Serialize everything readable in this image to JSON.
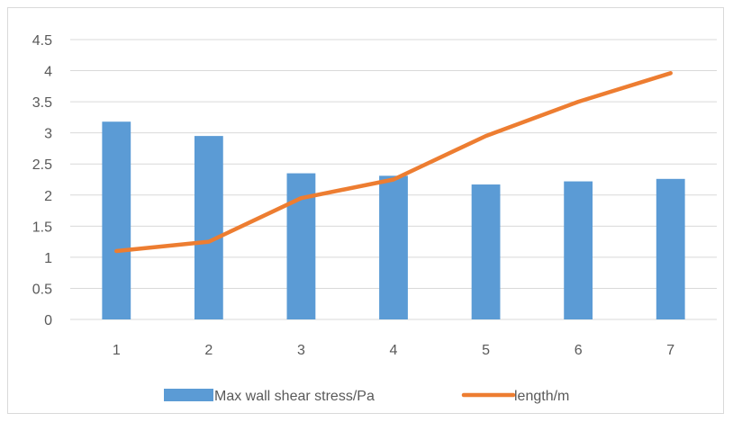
{
  "chart_data": {
    "type": "bar",
    "categories": [
      "1",
      "2",
      "3",
      "4",
      "5",
      "6",
      "7"
    ],
    "series": [
      {
        "name": "Max wall shear stress/Pa",
        "kind": "bar",
        "color": "#5b9bd5",
        "values": [
          3.18,
          2.95,
          2.35,
          2.31,
          2.17,
          2.22,
          2.26
        ]
      },
      {
        "name": "length/m",
        "kind": "line",
        "color": "#ed7d31",
        "values": [
          1.1,
          1.25,
          1.95,
          2.25,
          2.95,
          3.5,
          3.96
        ]
      }
    ],
    "ylim": [
      0,
      4.5
    ],
    "yticks": [
      "0",
      "0.5",
      "1",
      "1.5",
      "2",
      "2.5",
      "3",
      "3.5",
      "4",
      "4.5"
    ],
    "ytick_values": [
      0,
      0.5,
      1,
      1.5,
      2,
      2.5,
      3,
      3.5,
      4,
      4.5
    ],
    "grid": true,
    "legend_position": "bottom",
    "gridline_color": "#d9d9d9"
  }
}
